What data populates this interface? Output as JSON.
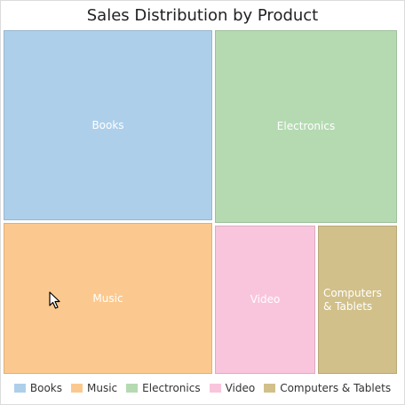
{
  "chart_data": {
    "type": "treemap",
    "title": "Sales Distribution by Product",
    "legend_position": "bottom",
    "items": [
      {
        "name": "Books",
        "value": 29.7,
        "color": "#aecfea"
      },
      {
        "name": "Electronics",
        "value": 26.3,
        "color": "#b5dab2"
      },
      {
        "name": "Music",
        "value": 23.6,
        "color": "#fbc98f"
      },
      {
        "name": "Video",
        "value": 11.4,
        "color": "#f9c5dc"
      },
      {
        "name": "Computers & Tablets",
        "value": 9.0,
        "color": "#d1c08a"
      }
    ]
  },
  "legend": [
    {
      "label": "Books",
      "color": "#aecfea"
    },
    {
      "label": "Music",
      "color": "#fbc98f"
    },
    {
      "label": "Electronics",
      "color": "#b5dab2"
    },
    {
      "label": "Video",
      "color": "#f9c5dc"
    },
    {
      "label": "Computers & Tablets",
      "color": "#d1c08a"
    }
  ],
  "cursor": {
    "icon": "mouse-pointer-icon"
  }
}
